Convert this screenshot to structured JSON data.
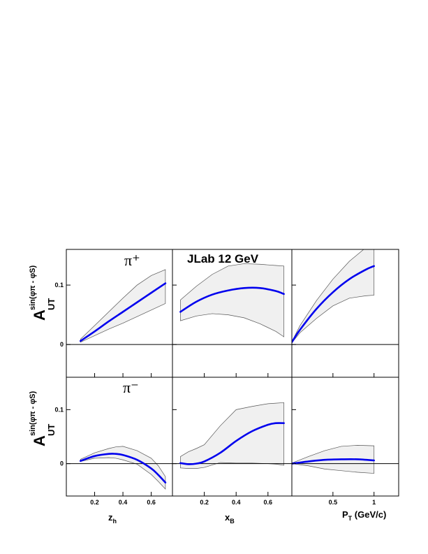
{
  "chart_data": {
    "type": "line",
    "annotation": "JLab 12 GeV",
    "rows": [
      {
        "ylabel_main": "A",
        "ylabel_sub": "UT",
        "ylabel_sup": "sin(φπ - φS)",
        "panel_label": "π⁺",
        "ylim": [
          -0.055,
          0.16
        ],
        "yticks": [
          0,
          0.1
        ],
        "yticklabels": [
          "0",
          "0.1"
        ]
      },
      {
        "ylabel_main": "A",
        "ylabel_sub": "UT",
        "ylabel_sup": "sin(φπ - φS)",
        "panel_label": "π⁻",
        "ylim": [
          -0.06,
          0.16
        ],
        "yticks": [
          0,
          0.1
        ],
        "yticklabels": [
          "0",
          "0.1"
        ]
      }
    ],
    "columns": [
      {
        "xlabel": "z",
        "xlabel_sub": "h",
        "xlim": [
          0.0,
          0.75
        ],
        "xticks": [
          0.2,
          0.4,
          0.6
        ],
        "xticklabels": [
          "0.2",
          "0.4",
          "0.6"
        ]
      },
      {
        "xlabel": "x",
        "xlabel_sub": "B",
        "xlim": [
          0.0,
          0.75
        ],
        "xticks": [
          0.2,
          0.4,
          0.6
        ],
        "xticklabels": [
          "0.2",
          "0.4",
          "0.6"
        ]
      },
      {
        "xlabel": "P",
        "xlabel_sub": "T",
        "xlabel_suffix": " (GeV/c)",
        "xlim": [
          0.0,
          1.3
        ],
        "xticks": [
          0.5,
          1.0
        ],
        "xticklabels": [
          "0.5",
          "1"
        ]
      }
    ],
    "panels": [
      {
        "row": 0,
        "col": 0,
        "x": [
          0.1,
          0.2,
          0.3,
          0.4,
          0.5,
          0.6,
          0.7
        ],
        "y": [
          0.006,
          0.022,
          0.039,
          0.055,
          0.071,
          0.087,
          0.103
        ],
        "band_upper": [
          0.009,
          0.032,
          0.055,
          0.078,
          0.1,
          0.116,
          0.126
        ],
        "band_lower": [
          0.004,
          0.015,
          0.026,
          0.036,
          0.047,
          0.058,
          0.069
        ]
      },
      {
        "row": 0,
        "col": 1,
        "x": [
          0.05,
          0.15,
          0.25,
          0.35,
          0.45,
          0.55,
          0.65,
          0.7
        ],
        "y": [
          0.055,
          0.072,
          0.084,
          0.091,
          0.095,
          0.095,
          0.09,
          0.085
        ],
        "band_upper": [
          0.075,
          0.098,
          0.118,
          0.132,
          0.136,
          0.135,
          0.133,
          0.132
        ],
        "band_lower": [
          0.04,
          0.048,
          0.052,
          0.05,
          0.045,
          0.035,
          0.022,
          0.013
        ]
      },
      {
        "row": 0,
        "col": 2,
        "x": [
          0.0,
          0.1,
          0.3,
          0.5,
          0.7,
          0.9,
          1.0
        ],
        "y": [
          0.004,
          0.025,
          0.06,
          0.088,
          0.11,
          0.126,
          0.132
        ],
        "band_upper": [
          0.005,
          0.032,
          0.074,
          0.11,
          0.14,
          0.163,
          0.17
        ],
        "band_lower": [
          0.003,
          0.02,
          0.044,
          0.065,
          0.078,
          0.082,
          0.083
        ]
      },
      {
        "row": 1,
        "col": 0,
        "x": [
          0.1,
          0.2,
          0.3,
          0.35,
          0.4,
          0.5,
          0.6,
          0.65,
          0.7
        ],
        "y": [
          0.005,
          0.014,
          0.018,
          0.018,
          0.016,
          0.007,
          -0.009,
          -0.021,
          -0.035
        ],
        "band_upper": [
          0.008,
          0.02,
          0.028,
          0.031,
          0.032,
          0.024,
          0.01,
          -0.004,
          -0.024
        ],
        "band_lower": [
          0.004,
          0.01,
          0.011,
          0.01,
          0.007,
          -0.001,
          -0.02,
          -0.033,
          -0.047
        ]
      },
      {
        "row": 1,
        "col": 1,
        "x": [
          0.05,
          0.1,
          0.15,
          0.2,
          0.3,
          0.4,
          0.5,
          0.6,
          0.65,
          0.7
        ],
        "y": [
          0.001,
          -0.001,
          0.0,
          0.004,
          0.02,
          0.042,
          0.06,
          0.072,
          0.075,
          0.075
        ],
        "band_upper": [
          0.013,
          0.022,
          0.028,
          0.035,
          0.07,
          0.1,
          0.106,
          0.111,
          0.112,
          0.113
        ],
        "band_lower": [
          -0.008,
          -0.009,
          -0.009,
          -0.007,
          0.002,
          0.001,
          0.001,
          0.0,
          -0.001,
          -0.003
        ]
      },
      {
        "row": 1,
        "col": 2,
        "x": [
          0.0,
          0.2,
          0.4,
          0.6,
          0.8,
          1.0
        ],
        "y": [
          0.0,
          0.004,
          0.007,
          0.008,
          0.008,
          0.006
        ],
        "band_upper": [
          0.001,
          0.013,
          0.024,
          0.032,
          0.034,
          0.033
        ],
        "band_lower": [
          0.0,
          -0.004,
          -0.01,
          -0.013,
          -0.016,
          -0.018
        ]
      }
    ],
    "colors": {
      "curve": "#0000ee",
      "band_fill": "#f0f0f0",
      "band_edge": "#555555",
      "axis": "#000000",
      "zero_line": "#000000"
    },
    "grid": false,
    "legend": "none"
  }
}
